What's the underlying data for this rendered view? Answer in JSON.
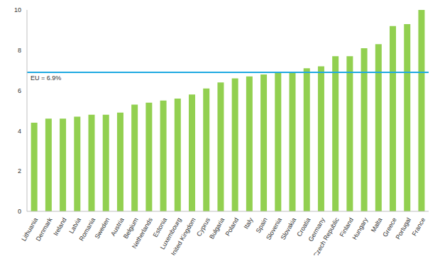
{
  "chart_data": {
    "type": "bar",
    "categories": [
      "Lithuania",
      "Denmark",
      "Ireland",
      "Latvia",
      "Romania",
      "Sweden",
      "Austria",
      "Belgium",
      "Netherlands",
      "Estonia",
      "Luxembourg",
      "United Kingdom",
      "Cyprus",
      "Bulgaria",
      "Poland",
      "Italy",
      "Spain",
      "Slovenia",
      "Slovakia",
      "Croatia",
      "Germany",
      "Czech Republic",
      "Finland",
      "Hungary",
      "Malta",
      "Greece",
      "Portugal",
      "France"
    ],
    "values": [
      4.4,
      4.6,
      4.6,
      4.7,
      4.8,
      4.8,
      4.9,
      5.3,
      5.4,
      5.5,
      5.6,
      5.8,
      6.1,
      6.4,
      6.6,
      6.7,
      6.8,
      6.9,
      6.9,
      7.1,
      7.2,
      7.7,
      7.7,
      8.1,
      8.3,
      9.2,
      9.3,
      10.0
    ],
    "color": "#92d050",
    "ylim": [
      0,
      10
    ],
    "yticks": [
      0,
      2,
      4,
      6,
      8,
      10
    ],
    "grid": false,
    "reference_line": {
      "value": 6.9,
      "label": "EU = 6.9%",
      "color": "#1fa9e1"
    }
  }
}
